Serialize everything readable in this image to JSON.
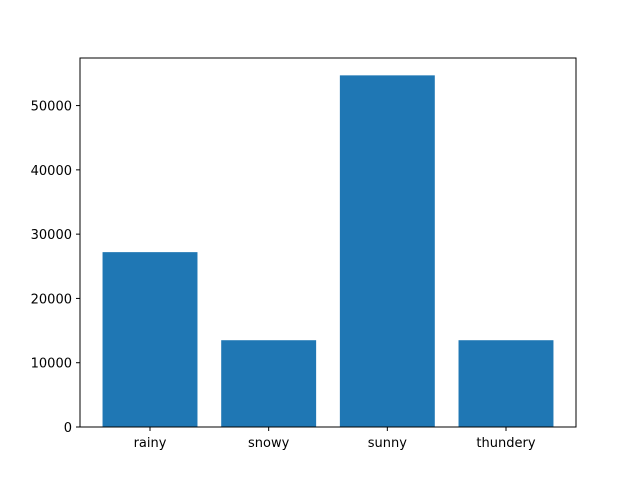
{
  "chart_data": {
    "type": "bar",
    "categories": [
      "rainy",
      "snowy",
      "sunny",
      "thundery"
    ],
    "values": [
      27200,
      13500,
      54700,
      13500
    ],
    "title": "",
    "xlabel": "",
    "ylabel": "",
    "ylim": [
      0,
      57400
    ],
    "yticks": [
      0,
      10000,
      20000,
      30000,
      40000,
      50000
    ],
    "ytick_labels": [
      "0",
      "10000",
      "20000",
      "30000",
      "40000",
      "50000"
    ],
    "grid": false,
    "legend": "none",
    "bar_color": "#1f77b4"
  }
}
